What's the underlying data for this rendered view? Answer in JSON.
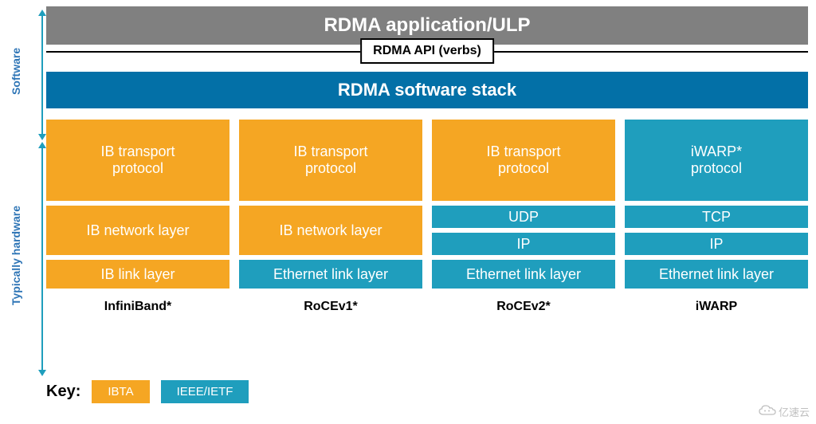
{
  "sideLabels": {
    "software": "Software",
    "hardware": "Typically hardware"
  },
  "topBar": "RDMA application/ULP",
  "apiBox": "RDMA API (verbs)",
  "stackBar": "RDMA software stack",
  "columns": [
    {
      "name": "InfiniBand*",
      "blocks": [
        {
          "text": "IB transport\nprotocol",
          "color": "orange",
          "h": "tall"
        },
        {
          "text": "IB network layer",
          "color": "orange",
          "h": "med"
        },
        {
          "text": "IB link layer",
          "color": "orange",
          "h": "sm"
        }
      ]
    },
    {
      "name": "RoCEv1*",
      "blocks": [
        {
          "text": "IB transport\nprotocol",
          "color": "orange",
          "h": "tall"
        },
        {
          "text": "IB network layer",
          "color": "orange",
          "h": "med"
        },
        {
          "text": "Ethernet link layer",
          "color": "teal",
          "h": "sm"
        }
      ]
    },
    {
      "name": "RoCEv2*",
      "blocks": [
        {
          "text": "IB transport\nprotocol",
          "color": "orange",
          "h": "tall"
        },
        {
          "split": [
            {
              "text": "UDP",
              "color": "teal"
            },
            {
              "text": "IP",
              "color": "teal"
            }
          ]
        },
        {
          "text": "Ethernet link layer",
          "color": "teal",
          "h": "sm"
        }
      ]
    },
    {
      "name": "iWARP",
      "blocks": [
        {
          "text": "iWARP*\nprotocol",
          "color": "teal",
          "h": "tall"
        },
        {
          "split": [
            {
              "text": "TCP",
              "color": "teal"
            },
            {
              "text": "IP",
              "color": "teal"
            }
          ]
        },
        {
          "text": "Ethernet link layer",
          "color": "teal",
          "h": "sm"
        }
      ]
    }
  ],
  "key": {
    "label": "Key:",
    "items": [
      {
        "text": "IBTA",
        "color": "orange"
      },
      {
        "text": "IEEE/IETF",
        "color": "teal"
      }
    ]
  },
  "watermark": "亿速云",
  "colors": {
    "orange": "#f5a623",
    "teal": "#1f9ebd",
    "gray": "#808080",
    "blue": "#0370a7",
    "sideText": "#2e75b6"
  }
}
